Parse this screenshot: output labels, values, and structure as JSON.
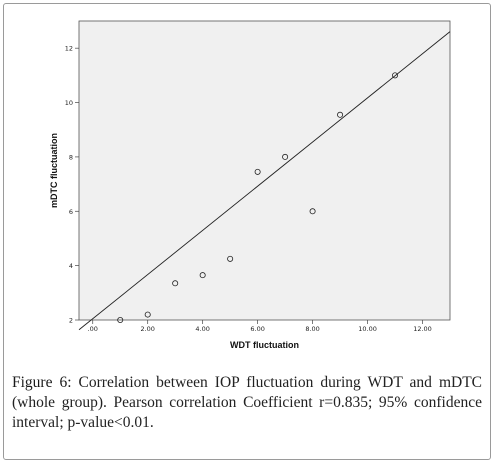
{
  "chart_data": {
    "type": "scatter",
    "xlabel": "WDT fluctuation",
    "ylabel": "mDTC fluctuation",
    "xlim": [
      -0.5,
      13
    ],
    "ylim": [
      2,
      13
    ],
    "x_ticks": [
      0,
      2,
      4,
      6,
      8,
      10,
      12
    ],
    "x_tick_labels": [
      ".00",
      "2.00",
      "4.00",
      "6.00",
      "8.00",
      "10.00",
      "12.00"
    ],
    "y_ticks": [
      2,
      4,
      6,
      8,
      10,
      12
    ],
    "y_tick_labels": [
      "2",
      "4",
      "6",
      "8",
      "10",
      "12"
    ],
    "grid": false,
    "points": [
      {
        "x": 1,
        "y": 2
      },
      {
        "x": 2,
        "y": 2.2
      },
      {
        "x": 3,
        "y": 3.35
      },
      {
        "x": 4,
        "y": 3.65
      },
      {
        "x": 5,
        "y": 4.25
      },
      {
        "x": 6,
        "y": 7.45
      },
      {
        "x": 7,
        "y": 8
      },
      {
        "x": 8,
        "y": 6
      },
      {
        "x": 9,
        "y": 9.55
      },
      {
        "x": 11,
        "y": 11
      }
    ],
    "fit_line": {
      "x0": -0.5,
      "y0": 1.64,
      "x1": 13,
      "y1": 12.61
    }
  },
  "caption": {
    "label": "Figure 6:",
    "text": "Correlation between IOP fluctuation during WDT and mDTC (whole group). Pearson correlation Coefficient r=0.835; 95% confidence interval; p-value<0.01."
  },
  "colors": {
    "plot_background": "#f0f0f0",
    "marker_stroke": "#222222",
    "line": "#222222"
  }
}
